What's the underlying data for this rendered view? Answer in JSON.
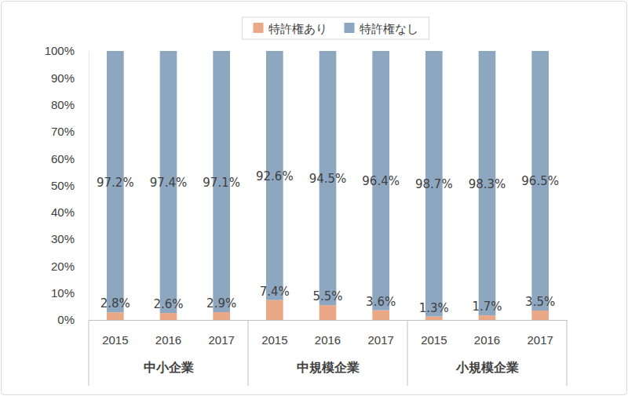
{
  "chart_data": {
    "type": "bar",
    "stacked": true,
    "data_labels": true,
    "grid": false,
    "legend": "top",
    "categories": [
      "2015",
      "2016",
      "2017",
      "2015",
      "2016",
      "2017",
      "2015",
      "2016",
      "2017"
    ],
    "category_groups": [
      "中小企業",
      "中規模企業",
      "小規模企業"
    ],
    "series": [
      {
        "name": "特許権あり",
        "color": "#eaa886",
        "values": [
          2.8,
          2.6,
          2.9,
          7.4,
          5.5,
          3.6,
          1.3,
          1.7,
          3.5
        ],
        "value_labels": [
          "2.8%",
          "2.6%",
          "2.9%",
          "7.4%",
          "5.5%",
          "3.6%",
          "1.3%",
          "1.7%",
          "3.5%"
        ]
      },
      {
        "name": "特許権なし",
        "color": "#8ea7c0",
        "values": [
          97.2,
          97.4,
          97.1,
          92.6,
          94.5,
          96.4,
          98.7,
          98.3,
          96.5
        ],
        "value_labels": [
          "97.2%",
          "97.4%",
          "97.1%",
          "92.6%",
          "94.5%",
          "96.4%",
          "98.7%",
          "98.3%",
          "96.5%"
        ]
      }
    ],
    "ylim": [
      0,
      100
    ],
    "yticks": [
      {
        "value": 0,
        "label": "0%"
      },
      {
        "value": 10,
        "label": "10%"
      },
      {
        "value": 20,
        "label": "20%"
      },
      {
        "value": 30,
        "label": "30%"
      },
      {
        "value": 40,
        "label": "40%"
      },
      {
        "value": 50,
        "label": "50%"
      },
      {
        "value": 60,
        "label": "60%"
      },
      {
        "value": 70,
        "label": "70%"
      },
      {
        "value": 80,
        "label": "80%"
      },
      {
        "value": 90,
        "label": "90%"
      },
      {
        "value": 100,
        "label": "100%"
      }
    ]
  }
}
